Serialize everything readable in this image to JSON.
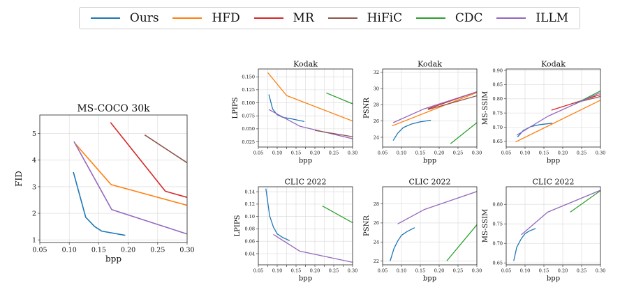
{
  "legend": [
    {
      "name": "Ours",
      "color": "#1f77b4"
    },
    {
      "name": "HFD",
      "color": "#ff7f0e"
    },
    {
      "name": "MR",
      "color": "#d62728"
    },
    {
      "name": "HiFiC",
      "color": "#8c564b"
    },
    {
      "name": "CDC",
      "color": "#2ca02c"
    },
    {
      "name": "ILLM",
      "color": "#9467bd"
    }
  ],
  "chart_data": [
    {
      "id": "mscoco-fid",
      "type": "line",
      "title": "MS-COCO 30k",
      "xlabel": "bpp",
      "ylabel": "FID",
      "grid": true,
      "xlim": [
        0.05,
        0.3
      ],
      "ylim": [
        0.9,
        5.7
      ],
      "xticks": [
        0.05,
        0.1,
        0.15,
        0.2,
        0.25,
        0.3
      ],
      "xtick_labels": [
        "0.05",
        "0.10",
        "0.15",
        "0.20",
        "0.25",
        "0.30"
      ],
      "yticks": [
        1,
        2,
        3,
        4,
        5
      ],
      "ytick_labels": [
        "1",
        "2",
        "3",
        "4",
        "5"
      ],
      "series": [
        {
          "name": "Ours",
          "x": [
            0.107,
            0.128,
            0.143,
            0.155,
            0.195
          ],
          "y": [
            3.55,
            1.85,
            1.5,
            1.33,
            1.17
          ]
        },
        {
          "name": "HFD",
          "x": [
            0.109,
            0.171,
            0.3
          ],
          "y": [
            4.65,
            3.08,
            2.3
          ]
        },
        {
          "name": "MR",
          "x": [
            0.17,
            0.263,
            0.3
          ],
          "y": [
            5.42,
            2.83,
            2.6
          ]
        },
        {
          "name": "HiFiC",
          "x": [
            0.228,
            0.3
          ],
          "y": [
            4.95,
            3.9
          ]
        },
        {
          "name": "ILLM",
          "x": [
            0.108,
            0.172,
            0.3
          ],
          "y": [
            4.7,
            2.14,
            1.22
          ]
        }
      ]
    },
    {
      "id": "kodak-lpips",
      "type": "line",
      "title": "Kodak",
      "xlabel": "bpp",
      "ylabel": "LPIPS",
      "grid": true,
      "xlim": [
        0.05,
        0.3
      ],
      "ylim": [
        0.015,
        0.165
      ],
      "xticks": [
        0.05,
        0.075,
        0.1,
        0.125,
        0.15,
        0.175,
        0.2,
        0.225,
        0.25,
        0.275,
        0.3
      ],
      "xtick_labels": [
        "0.05",
        "0.10",
        "0.15",
        "0.20",
        "0.25",
        "0.30"
      ],
      "xtick_label_values": [
        0.05,
        0.1,
        0.15,
        0.2,
        0.25,
        0.3
      ],
      "yticks": [
        0.025,
        0.05,
        0.075,
        0.1,
        0.125,
        0.15
      ],
      "ytick_labels": [
        "0.025",
        "0.050",
        "0.075",
        "0.100",
        "0.125",
        "0.150"
      ],
      "series": [
        {
          "name": "Ours",
          "x": [
            0.078,
            0.088,
            0.1,
            0.115,
            0.14,
            0.172
          ],
          "y": [
            0.116,
            0.088,
            0.077,
            0.072,
            0.069,
            0.064
          ]
        },
        {
          "name": "HFD",
          "x": [
            0.075,
            0.125,
            0.3
          ],
          "y": [
            0.158,
            0.114,
            0.065
          ]
        },
        {
          "name": "CDC",
          "x": [
            0.23,
            0.3
          ],
          "y": [
            0.119,
            0.098
          ]
        },
        {
          "name": "ILLM",
          "x": [
            0.078,
            0.16,
            0.3
          ],
          "y": [
            0.087,
            0.055,
            0.031
          ]
        },
        {
          "name": "HiFiC",
          "x": [
            0.2,
            0.3
          ],
          "y": [
            0.047,
            0.035
          ]
        }
      ]
    },
    {
      "id": "kodak-psnr",
      "type": "line",
      "title": "Kodak",
      "xlabel": "bpp",
      "ylabel": "PSNR",
      "grid": true,
      "xlim": [
        0.05,
        0.3
      ],
      "ylim": [
        22.8,
        32.4
      ],
      "xticks": [
        0.05,
        0.1,
        0.15,
        0.2,
        0.25,
        0.3
      ],
      "xtick_labels": [
        "0.05",
        "0.10",
        "0.15",
        "0.20",
        "0.25",
        "0.30"
      ],
      "yticks": [
        24,
        26,
        28,
        30,
        32
      ],
      "ytick_labels": [
        "24",
        "26",
        "28",
        "30",
        "32"
      ],
      "series": [
        {
          "name": "Ours",
          "x": [
            0.078,
            0.09,
            0.105,
            0.125,
            0.15,
            0.178
          ],
          "y": [
            23.6,
            24.5,
            25.2,
            25.6,
            25.9,
            26.1
          ]
        },
        {
          "name": "HFD",
          "x": [
            0.075,
            0.3
          ],
          "y": [
            25.4,
            29.5
          ]
        },
        {
          "name": "MR",
          "x": [
            0.17,
            0.3
          ],
          "y": [
            27.5,
            29.6
          ]
        },
        {
          "name": "HiFiC",
          "x": [
            0.17,
            0.3
          ],
          "y": [
            27.4,
            29.1
          ]
        },
        {
          "name": "CDC",
          "x": [
            0.23,
            0.3
          ],
          "y": [
            23.2,
            25.8
          ]
        },
        {
          "name": "ILLM",
          "x": [
            0.078,
            0.16,
            0.3
          ],
          "y": [
            25.8,
            27.5,
            29.6
          ]
        }
      ]
    },
    {
      "id": "kodak-msssim",
      "type": "line",
      "title": "Kodak",
      "xlabel": "bpp",
      "ylabel": "MS-SSIM",
      "grid": true,
      "xlim": [
        0.05,
        0.3
      ],
      "ylim": [
        0.63,
        0.905
      ],
      "xticks": [
        0.05,
        0.1,
        0.15,
        0.2,
        0.25,
        0.3
      ],
      "xtick_labels": [
        "0.05",
        "0.10",
        "0.15",
        "0.20",
        "0.25",
        "0.30"
      ],
      "yticks": [
        0.65,
        0.7,
        0.75,
        0.8,
        0.85,
        0.9
      ],
      "ytick_labels": [
        "0.65",
        "0.70",
        "0.75",
        "0.80",
        "0.85",
        "0.90"
      ],
      "series": [
        {
          "name": "Ours",
          "x": [
            0.08,
            0.095,
            0.115,
            0.14,
            0.172
          ],
          "y": [
            0.665,
            0.688,
            0.702,
            0.709,
            0.714
          ]
        },
        {
          "name": "HFD",
          "x": [
            0.075,
            0.3
          ],
          "y": [
            0.648,
            0.795
          ]
        },
        {
          "name": "MR",
          "x": [
            0.17,
            0.3
          ],
          "y": [
            0.76,
            0.815
          ]
        },
        {
          "name": "HiFiC",
          "x": [
            0.23,
            0.3
          ],
          "y": [
            0.785,
            0.808
          ]
        },
        {
          "name": "CDC",
          "x": [
            0.23,
            0.3
          ],
          "y": [
            0.78,
            0.828
          ]
        },
        {
          "name": "ILLM",
          "x": [
            0.078,
            0.16,
            0.3
          ],
          "y": [
            0.672,
            0.738,
            0.822
          ]
        }
      ]
    },
    {
      "id": "clic-lpips",
      "type": "line",
      "title": "CLIC 2022",
      "xlabel": "bpp",
      "ylabel": "LPIPS",
      "grid": true,
      "xlim": [
        0.05,
        0.3
      ],
      "ylim": [
        0.022,
        0.148
      ],
      "xticks": [
        0.05,
        0.075,
        0.1,
        0.125,
        0.15,
        0.175,
        0.2,
        0.225,
        0.25,
        0.275,
        0.3
      ],
      "xtick_labels": [
        "0.05",
        "0.10",
        "0.15",
        "0.20",
        "0.25",
        "0.30"
      ],
      "xtick_label_values": [
        0.05,
        0.1,
        0.15,
        0.2,
        0.25,
        0.3
      ],
      "yticks": [
        0.04,
        0.06,
        0.08,
        0.1,
        0.12,
        0.14
      ],
      "ytick_labels": [
        "0.04",
        "0.06",
        "0.08",
        "0.10",
        "0.12",
        "0.14"
      ],
      "series": [
        {
          "name": "Ours",
          "x": [
            0.07,
            0.08,
            0.09,
            0.1,
            0.115,
            0.133
          ],
          "y": [
            0.145,
            0.101,
            0.083,
            0.072,
            0.066,
            0.061
          ]
        },
        {
          "name": "CDC",
          "x": [
            0.22,
            0.3
          ],
          "y": [
            0.117,
            0.09
          ]
        },
        {
          "name": "ILLM",
          "x": [
            0.09,
            0.16,
            0.3
          ],
          "y": [
            0.071,
            0.044,
            0.026
          ]
        }
      ]
    },
    {
      "id": "clic-psnr",
      "type": "line",
      "title": "CLIC 2022",
      "xlabel": "bpp",
      "ylabel": "PSNR",
      "grid": true,
      "xlim": [
        0.05,
        0.3
      ],
      "ylim": [
        21.6,
        29.8
      ],
      "xticks": [
        0.05,
        0.1,
        0.15,
        0.2,
        0.25,
        0.3
      ],
      "xtick_labels": [
        "0.05",
        "0.10",
        "0.15",
        "0.20",
        "0.25",
        "0.30"
      ],
      "yticks": [
        22,
        24,
        26,
        28
      ],
      "ytick_labels": [
        "22",
        "24",
        "26",
        "28"
      ],
      "series": [
        {
          "name": "Ours",
          "x": [
            0.07,
            0.08,
            0.09,
            0.1,
            0.115,
            0.135
          ],
          "y": [
            22.0,
            23.3,
            24.1,
            24.7,
            25.1,
            25.5
          ]
        },
        {
          "name": "CDC",
          "x": [
            0.22,
            0.3
          ],
          "y": [
            22.0,
            25.8
          ]
        },
        {
          "name": "ILLM",
          "x": [
            0.09,
            0.16,
            0.3
          ],
          "y": [
            25.9,
            27.4,
            29.3
          ]
        }
      ]
    },
    {
      "id": "clic-msssim",
      "type": "line",
      "title": "CLIC 2022",
      "xlabel": "bpp",
      "ylabel": "MS-SSIM",
      "grid": true,
      "xlim": [
        0.05,
        0.3
      ],
      "ylim": [
        0.645,
        0.845
      ],
      "xticks": [
        0.05,
        0.1,
        0.15,
        0.2,
        0.25,
        0.3
      ],
      "xtick_labels": [
        "0.05",
        "0.10",
        "0.15",
        "0.20",
        "0.25",
        "0.30"
      ],
      "yticks": [
        0.65,
        0.7,
        0.75,
        0.8
      ],
      "ytick_labels": [
        "0.65",
        "0.70",
        "0.75",
        "0.80"
      ],
      "series": [
        {
          "name": "Ours",
          "x": [
            0.07,
            0.078,
            0.09,
            0.1,
            0.112,
            0.128
          ],
          "y": [
            0.655,
            0.69,
            0.712,
            0.725,
            0.732,
            0.738
          ]
        },
        {
          "name": "CDC",
          "x": [
            0.22,
            0.3
          ],
          "y": [
            0.78,
            0.835
          ]
        },
        {
          "name": "ILLM",
          "x": [
            0.09,
            0.16,
            0.3
          ],
          "y": [
            0.722,
            0.78,
            0.836
          ]
        }
      ]
    }
  ]
}
